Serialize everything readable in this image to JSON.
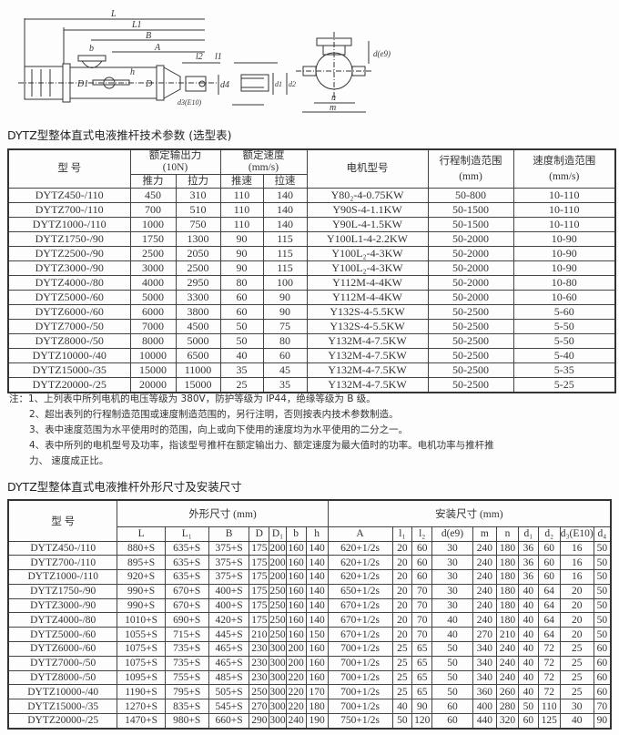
{
  "diagram": {
    "labels": [
      "L",
      "L1",
      "B",
      "A",
      "b",
      "h",
      "D1",
      "D",
      "l2",
      "l1",
      "d4",
      "d3(E10)",
      "d1",
      "d2",
      "d(e9)",
      "n",
      "m"
    ]
  },
  "table1": {
    "title": "DYTZ型整体直式电液推杆技术参数 (选型表)",
    "headers": {
      "model": "型 号",
      "force": "额定输出力",
      "force_unit": "(10N)",
      "push": "推力",
      "pull": "拉力",
      "speed": "额定速度",
      "speed_unit": "(mm/s)",
      "push_speed": "推速",
      "pull_speed": "拉速",
      "motor": "电机型号",
      "stroke": "行程制造范围",
      "stroke_unit": "(mm)",
      "speed_range": "速度制造范围",
      "speed_range_unit": "(mm/s)"
    },
    "rows": [
      [
        "DYTZ450-/110",
        "450",
        "310",
        "110",
        "140",
        "Y80₂-4-0.75KW",
        "50-800",
        "10-110"
      ],
      [
        "DYTZ700-/110",
        "700",
        "510",
        "110",
        "140",
        "Y90S-4-1.1KW",
        "50-1500",
        "10-110"
      ],
      [
        "DYTZ1000-/110",
        "1000",
        "750",
        "110",
        "140",
        "Y90L-4-1.5KW",
        "50-1500",
        "10-110"
      ],
      [
        "DYTZ1750-/90",
        "1750",
        "1300",
        "90",
        "115",
        "Y100L1-4-2.2KW",
        "50-2000",
        "10-90"
      ],
      [
        "DYTZ2500-/90",
        "2500",
        "2050",
        "90",
        "115",
        "Y100L₂-4-3KW",
        "50-2000",
        "10-90"
      ],
      [
        "DYTZ3000-/90",
        "3000",
        "2500",
        "90",
        "115",
        "Y100L₂-4-3KW",
        "50-2000",
        "10-90"
      ],
      [
        "DYTZ4000-/80",
        "4000",
        "2950",
        "80",
        "100",
        "Y112M-4-4KW",
        "50-2000",
        "10-80"
      ],
      [
        "DYTZ5000-/60",
        "5000",
        "3300",
        "60",
        "90",
        "Y112M-4-4KW",
        "50-2000",
        "10-60"
      ],
      [
        "DYTZ6000-/60",
        "6000",
        "3800",
        "60",
        "90",
        "Y132S-4-5.5KW",
        "50-2500",
        "5-60"
      ],
      [
        "DYTZ7000-/50",
        "7000",
        "4500",
        "50",
        "75",
        "Y132S-4-5.5KW",
        "50-2500",
        "5-50"
      ],
      [
        "DYTZ8000-/50",
        "8000",
        "5000",
        "50",
        "80",
        "Y132M-4-7.5KW",
        "50-2500",
        "5-50"
      ],
      [
        "DYTZ10000-/40",
        "10000",
        "6500",
        "40",
        "60",
        "Y132M-4-7.5KW",
        "50-2500",
        "5-40"
      ],
      [
        "DYTZ15000-/35",
        "15000",
        "11000",
        "35",
        "45",
        "Y132M-4-7.5KW",
        "50-2500",
        "5-35"
      ],
      [
        "DYTZ20000-/25",
        "20000",
        "15000",
        "25",
        "35",
        "Y132M-4-7.5KW",
        "50-2500",
        "5-25"
      ]
    ]
  },
  "notes": [
    "注：1、上列表中所列电机的电压等级为 380V，防护等级为 IP44，绝缘等级为 B 级。",
    "2、超出表列的行程制造范围或速度制造范围的，另行注明，否则按表内技术参数制造。",
    "3、表中速度范围为水平使用时的范围，向上或向下使用的速度均为水平使用的二分之一。",
    "4、表中所列的电机型号及功率，指该型号推杆在额定输出力、额定速度为最大值时的功率。电机功率与推杆推",
    "力、 速度成正比。"
  ],
  "table2": {
    "title": "DYTZ型整体直式电液推杆外形尺寸及安装尺寸",
    "headers": {
      "model": "型 号",
      "outline": "外形尺寸 (mm)",
      "install": "安装尺寸 (mm)",
      "cols": [
        "L",
        "L₁",
        "B",
        "D",
        "D₁",
        "b",
        "h",
        "A",
        "l₁",
        "l₂",
        "d(e9)",
        "m",
        "n",
        "d₁",
        "d₂",
        "d₃(E10)",
        "d₄"
      ]
    },
    "rows": [
      [
        "DYTZ450-/110",
        "880+S",
        "635+S",
        "375+S",
        "175",
        "200",
        "160",
        "140",
        "620+1/2s",
        "20",
        "60",
        "30",
        "240",
        "180",
        "36",
        "60",
        "16",
        "50"
      ],
      [
        "DYTZ700-/110",
        "895+S",
        "635+S",
        "375+S",
        "175",
        "200",
        "160",
        "140",
        "620+1/2s",
        "20",
        "60",
        "30",
        "240",
        "180",
        "36",
        "60",
        "16",
        "50"
      ],
      [
        "DYTZ1000-/110",
        "920+S",
        "635+S",
        "375+S",
        "175",
        "200",
        "160",
        "140",
        "620+1/2s",
        "20",
        "60",
        "30",
        "240",
        "180",
        "36",
        "60",
        "16",
        "50"
      ],
      [
        "DYTZ1750-/90",
        "990+S",
        "670+S",
        "400+S",
        "175",
        "250",
        "160",
        "140",
        "650+1/2s",
        "20",
        "70",
        "30",
        "240",
        "180",
        "40",
        "64",
        "20",
        "50"
      ],
      [
        "DYTZ3000-/90",
        "990+S",
        "670+S",
        "400+S",
        "175",
        "250",
        "160",
        "140",
        "670+1/2s",
        "20",
        "70",
        "30",
        "240",
        "180",
        "40",
        "64",
        "20",
        "50"
      ],
      [
        "DYTZ4000-/80",
        "1010+S",
        "690+S",
        "420+S",
        "175",
        "250",
        "160",
        "140",
        "670+1/2s",
        "20",
        "70",
        "40",
        "240",
        "180",
        "40",
        "64",
        "20",
        "50"
      ],
      [
        "DYTZ5000-/60",
        "1055+S",
        "715+S",
        "445+S",
        "210",
        "250",
        "160",
        "150",
        "670+1/2s",
        "20",
        "70",
        "40",
        "270",
        "210",
        "40",
        "64",
        "20",
        "50"
      ],
      [
        "DYTZ6000-/60",
        "1075+S",
        "735+S",
        "465+S",
        "230",
        "300",
        "200",
        "160",
        "700+1/2s",
        "25",
        "65",
        "50",
        "340",
        "240",
        "40",
        "72",
        "25",
        "60"
      ],
      [
        "DYTZ7000-/50",
        "1075+S",
        "735+S",
        "465+S",
        "230",
        "300",
        "200",
        "160",
        "700+1/2s",
        "25",
        "65",
        "50",
        "340",
        "240",
        "40",
        "72",
        "25",
        "60"
      ],
      [
        "DYTZ8000-/50",
        "1095+S",
        "755+S",
        "485+S",
        "230",
        "300",
        "220",
        "160",
        "700+1/2s",
        "25",
        "65",
        "50",
        "340",
        "240",
        "40",
        "72",
        "25",
        "60"
      ],
      [
        "DYTZ10000-/40",
        "1190+S",
        "795+S",
        "505+S",
        "250",
        "300",
        "220",
        "170",
        "700+1/2s",
        "25",
        "65",
        "50",
        "360",
        "260",
        "40",
        "72",
        "25",
        "60"
      ],
      [
        "DYTZ15000-/35",
        "1270+S",
        "835+S",
        "545+S",
        "270",
        "300",
        "220",
        "180",
        "700+1/2s",
        "40",
        "90",
        "60",
        "400",
        "280",
        "50",
        "110",
        "30",
        "70"
      ],
      [
        "DYTZ20000-/25",
        "1470+S",
        "980+S",
        "660+S",
        "290",
        "300",
        "240",
        "190",
        "750+1/2s",
        "50",
        "120",
        "60",
        "440",
        "320",
        "60",
        "125",
        "40",
        "90"
      ]
    ]
  }
}
